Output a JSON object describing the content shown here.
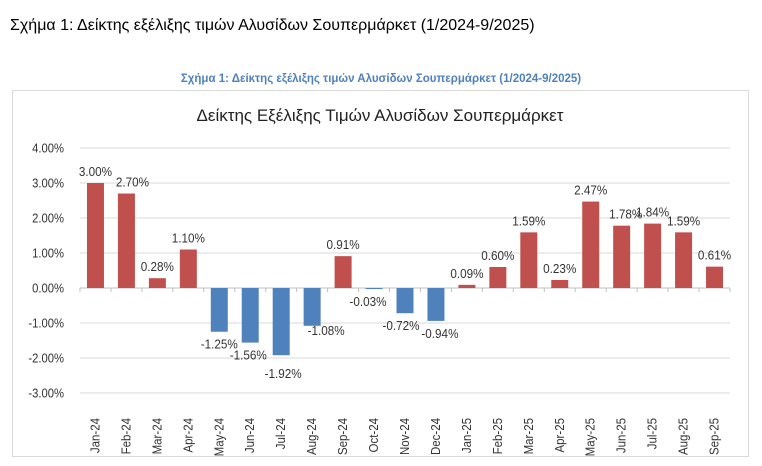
{
  "document_title": "Σχήμα 1: Δείκτης εξέλιξης τιμών Αλυσίδων Σουπερμάρκετ (1/2024-9/2025)",
  "figure_caption": "Σχήμα 1: Δείκτης εξέλιξης τιμών Αλυσίδων Σουπερμάρκετ (1/2024-9/2025)",
  "colors": {
    "positive": "#C0504D",
    "negative": "#4F81BD",
    "grid": "#D9D9D9"
  },
  "chart_data": {
    "type": "bar",
    "title": "Δείκτης Εξέλιξης Τιμών Αλυσίδων Σουπερμάρκετ",
    "xlabel": "",
    "ylabel": "",
    "categories": [
      "Jan-24",
      "Feb-24",
      "Mar-24",
      "Apr-24",
      "May-24",
      "Jun-24",
      "Jul-24",
      "Aug-24",
      "Sep-24",
      "Oct-24",
      "Nov-24",
      "Dec-24",
      "Jan-25",
      "Feb-25",
      "Mar-25",
      "Apr-25",
      "May-25",
      "Jun-25",
      "Jul-25",
      "Aug-25",
      "Sep-25"
    ],
    "values": [
      3.0,
      2.7,
      0.28,
      1.1,
      -1.25,
      -1.56,
      -1.92,
      -1.08,
      0.91,
      -0.03,
      -0.72,
      -0.94,
      0.09,
      0.6,
      1.59,
      0.23,
      2.47,
      1.78,
      1.84,
      1.59,
      0.61
    ],
    "data_labels": [
      "3.00%",
      "2.70%",
      "0.28%",
      "1.10%",
      "-1.25%",
      "-1.56%",
      "-1.92%",
      "-1.08%",
      "0.91%",
      "-0.03%",
      "-0.72%",
      "-0.94%",
      "0.09%",
      "0.60%",
      "1.59%",
      "0.23%",
      "2.47%",
      "1.78%",
      "1.84%",
      "1.59%",
      "0.61%"
    ],
    "ylim": [
      -3,
      4
    ],
    "yticks": [
      "4.00%",
      "3.00%",
      "2.00%",
      "1.00%",
      "0.00%",
      "-1.00%",
      "-2.00%",
      "-3.00%"
    ],
    "grid": true,
    "legend": "none"
  }
}
